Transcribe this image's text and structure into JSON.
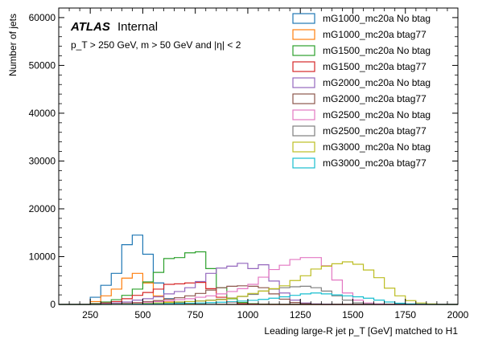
{
  "chart_data": {
    "type": "histogram-step",
    "annotations": {
      "experiment": "ATLAS",
      "status": "Internal",
      "cuts": "p_T > 250 GeV, m > 50 GeV and |η| < 2"
    },
    "xlabel": "Leading large-R jet p_T [GeV] matched to H1",
    "ylabel": "Number of jets",
    "xlim": [
      100,
      2000
    ],
    "ylim": [
      0,
      62000
    ],
    "xticks": [
      250,
      500,
      750,
      1000,
      1250,
      1500,
      1750,
      2000
    ],
    "yticks": [
      0,
      10000,
      20000,
      30000,
      40000,
      50000,
      60000
    ],
    "legend_position": "top-right",
    "bin_edges": [
      100,
      150,
      200,
      250,
      300,
      350,
      400,
      450,
      500,
      550,
      600,
      650,
      700,
      750,
      800,
      850,
      900,
      950,
      1000,
      1050,
      1100,
      1150,
      1200,
      1250,
      1300,
      1350,
      1400,
      1450,
      1500,
      1550,
      1600,
      1650,
      1700,
      1750,
      1800,
      1850,
      1900,
      1950,
      2000
    ],
    "series": [
      {
        "name": "mG1000_mc20a No btag",
        "color": "#1f77b4",
        "values": [
          0,
          0,
          0,
          1500,
          4000,
          6500,
          12500,
          14500,
          10500,
          4500,
          1200,
          400,
          150,
          60,
          30,
          15,
          0,
          0,
          0,
          0,
          0,
          0,
          0,
          0,
          0,
          0,
          0,
          0,
          0,
          0,
          0,
          0,
          0,
          0,
          0,
          0,
          0,
          0
        ]
      },
      {
        "name": "mG1000_mc20a btag77",
        "color": "#ff7f0e",
        "values": [
          0,
          0,
          0,
          600,
          1800,
          3200,
          5500,
          6500,
          4500,
          1800,
          500,
          150,
          60,
          20,
          10,
          0,
          0,
          0,
          0,
          0,
          0,
          0,
          0,
          0,
          0,
          0,
          0,
          0,
          0,
          0,
          0,
          0,
          0,
          0,
          0,
          0,
          0,
          0
        ]
      },
      {
        "name": "mG1500_mc20a No btag",
        "color": "#2ca02c",
        "values": [
          0,
          0,
          0,
          200,
          500,
          1000,
          1900,
          3200,
          4700,
          6700,
          9600,
          9800,
          10800,
          11000,
          7500,
          3500,
          1200,
          400,
          150,
          60,
          20,
          0,
          0,
          0,
          0,
          0,
          0,
          0,
          0,
          0,
          0,
          0,
          0,
          0,
          0,
          0,
          0,
          0
        ]
      },
      {
        "name": "mG1500_mc20a btag77",
        "color": "#d62728",
        "values": [
          0,
          0,
          0,
          100,
          300,
          600,
          1200,
          1900,
          2500,
          3200,
          4200,
          4300,
          4500,
          4600,
          3300,
          1500,
          500,
          150,
          60,
          20,
          0,
          0,
          0,
          0,
          0,
          0,
          0,
          0,
          0,
          0,
          0,
          0,
          0,
          0,
          0,
          0,
          0,
          0
        ]
      },
      {
        "name": "mG2000_mc20a No btag",
        "color": "#9467bd",
        "values": [
          0,
          0,
          0,
          50,
          150,
          300,
          500,
          900,
          1200,
          1600,
          2200,
          2700,
          3500,
          4800,
          6500,
          7600,
          8000,
          8600,
          7500,
          8300,
          4900,
          2400,
          900,
          300,
          100,
          40,
          0,
          0,
          0,
          0,
          0,
          0,
          0,
          0,
          0,
          0,
          0,
          0
        ]
      },
      {
        "name": "mG2000_mc20a btag77",
        "color": "#8c564b",
        "values": [
          0,
          0,
          0,
          20,
          60,
          150,
          250,
          400,
          600,
          800,
          1100,
          1400,
          1800,
          2300,
          3000,
          3500,
          3800,
          3900,
          3800,
          3500,
          2200,
          1100,
          400,
          150,
          50,
          0,
          0,
          0,
          0,
          0,
          0,
          0,
          0,
          0,
          0,
          0,
          0,
          0
        ]
      },
      {
        "name": "mG2500_mc20a No btag",
        "color": "#e377c2",
        "values": [
          0,
          0,
          0,
          0,
          50,
          100,
          200,
          300,
          450,
          600,
          800,
          1000,
          1200,
          1500,
          1800,
          2200,
          2700,
          3300,
          4200,
          5700,
          7300,
          8200,
          9400,
          9800,
          9800,
          8100,
          5100,
          2400,
          900,
          300,
          100,
          0,
          0,
          0,
          0,
          0,
          0,
          0
        ]
      },
      {
        "name": "mG2500_mc20a btag77",
        "color": "#7f7f7f",
        "values": [
          0,
          0,
          0,
          0,
          20,
          50,
          100,
          150,
          200,
          300,
          400,
          500,
          600,
          750,
          900,
          1100,
          1350,
          1650,
          2100,
          2800,
          3200,
          3500,
          3700,
          3800,
          3500,
          2800,
          1800,
          900,
          350,
          100,
          0,
          0,
          0,
          0,
          0,
          0,
          0,
          0
        ]
      },
      {
        "name": "mG3000_mc20a No btag",
        "color": "#bcbd22",
        "values": [
          0,
          0,
          0,
          0,
          0,
          50,
          100,
          150,
          200,
          300,
          400,
          500,
          600,
          700,
          850,
          1000,
          1300,
          1700,
          2300,
          2800,
          3300,
          3900,
          5000,
          6000,
          7400,
          8000,
          8500,
          8900,
          8400,
          7200,
          5600,
          3400,
          1800,
          800,
          300,
          100,
          0,
          0
        ]
      },
      {
        "name": "mG3000_mc20a btag77",
        "color": "#17becf",
        "values": [
          0,
          0,
          0,
          0,
          0,
          20,
          40,
          60,
          90,
          120,
          160,
          200,
          250,
          300,
          380,
          460,
          560,
          700,
          850,
          1050,
          1300,
          1600,
          1900,
          2200,
          2400,
          2200,
          2000,
          1800,
          1600,
          1300,
          900,
          500,
          250,
          100,
          40,
          0,
          0,
          0
        ]
      }
    ]
  }
}
